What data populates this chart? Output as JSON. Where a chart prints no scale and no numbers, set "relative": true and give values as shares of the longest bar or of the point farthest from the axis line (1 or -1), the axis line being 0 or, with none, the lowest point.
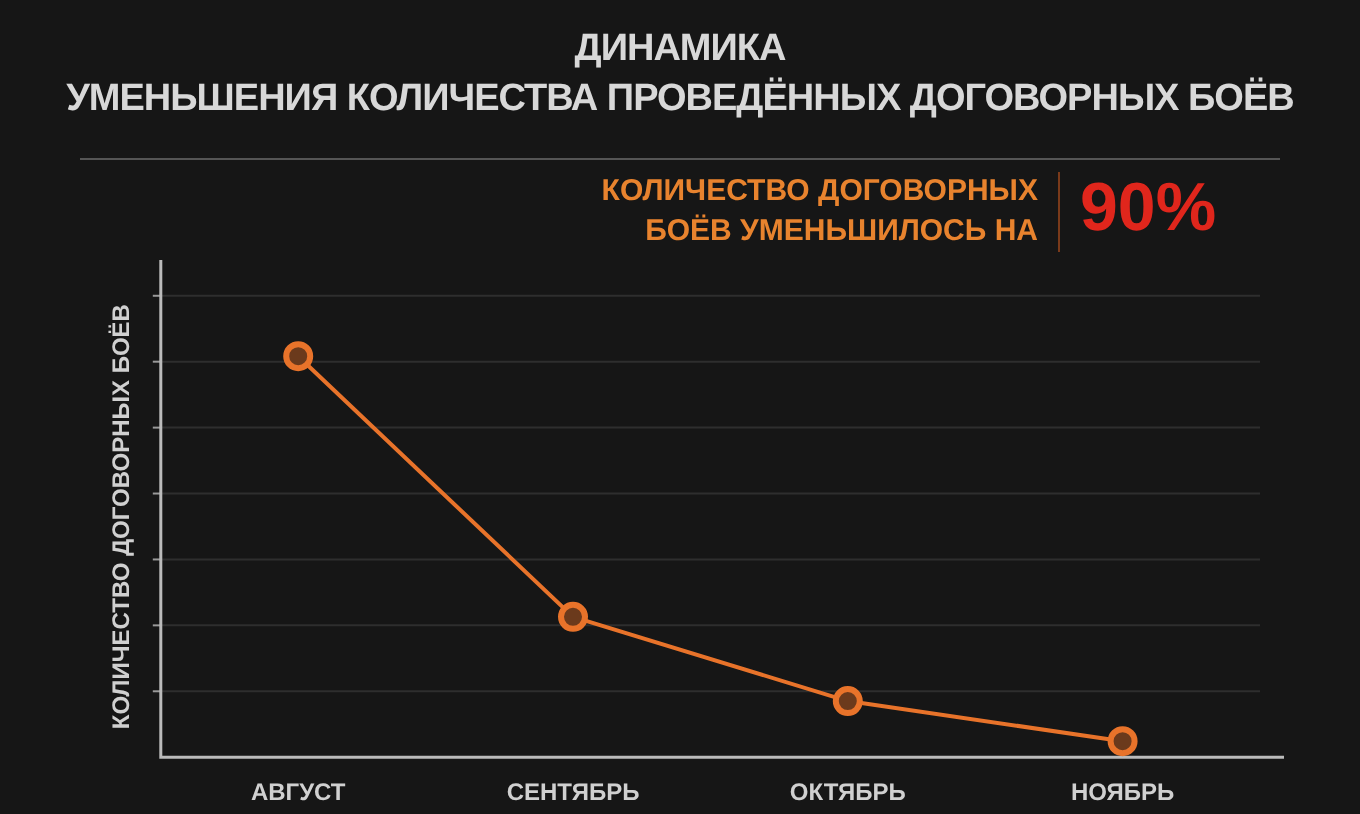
{
  "chart_data": {
    "type": "line",
    "title": "ДИНАМИКА\nУМЕНЬШЕНИЯ КОЛИЧЕСТВА ПРОВЕДЁННЫХ ДОГОВОРНЫХ БОЁВ",
    "ylabel": "КОЛИЧЕСТВО ДОГОВОРНЫХ БОЁВ",
    "categories": [
      "АВГУСТ",
      "СЕНТЯБРЬ",
      "ОКТЯБРЬ",
      "НОЯБРЬ"
    ],
    "series": [
      {
        "color": "#e8732a",
        "values": [
          1,
          0.35,
          0.14,
          0.04
        ]
      }
    ],
    "relative": true,
    "grid": "y",
    "legend": false,
    "marker": "circle",
    "line_style": "solid",
    "annotations": [
      "КОЛИЧЕСТВО ДОГОВОРНЫХ\nБОЁВ УМЕНЬШИЛОСЬ НА",
      "90%"
    ]
  }
}
